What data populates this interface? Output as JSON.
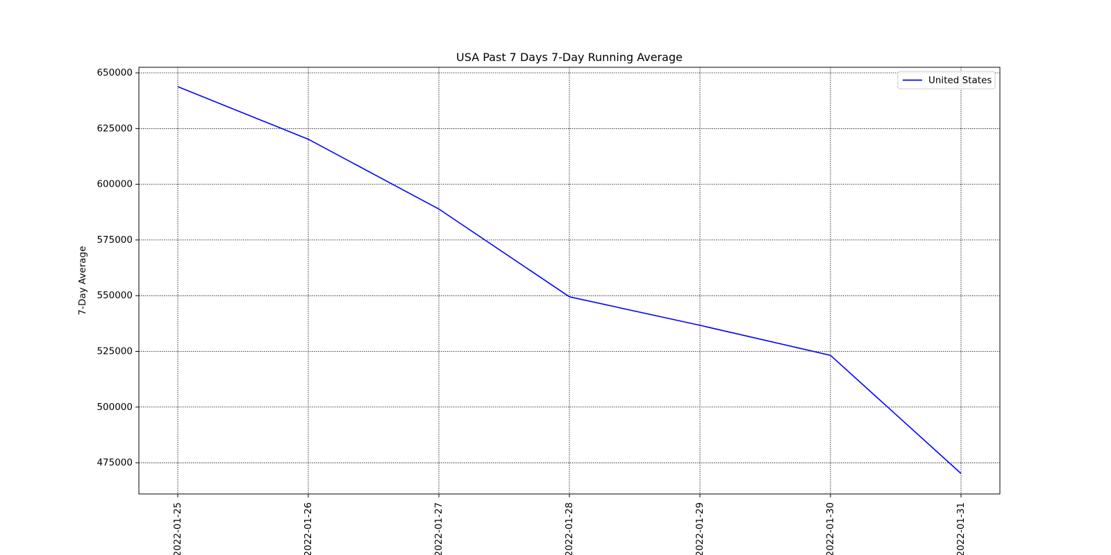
{
  "chart_data": {
    "type": "line",
    "title": "USA Past 7 Days 7-Day Running Average",
    "xlabel": "",
    "ylabel": "7-Day Average",
    "x": [
      "2022-01-25",
      "2022-01-26",
      "2022-01-27",
      "2022-01-28",
      "2022-01-29",
      "2022-01-30",
      "2022-01-31"
    ],
    "y_ticks": [
      "475000",
      "500000",
      "525000",
      "550000",
      "575000",
      "600000",
      "625000",
      "650000"
    ],
    "ylim": [
      461000,
      652500
    ],
    "grid": true,
    "legend_position": "upper right",
    "series": [
      {
        "name": "United States",
        "color": "#0000ff",
        "values": [
          643800,
          620200,
          588900,
          549500,
          536700,
          523200,
          470200
        ]
      }
    ]
  }
}
